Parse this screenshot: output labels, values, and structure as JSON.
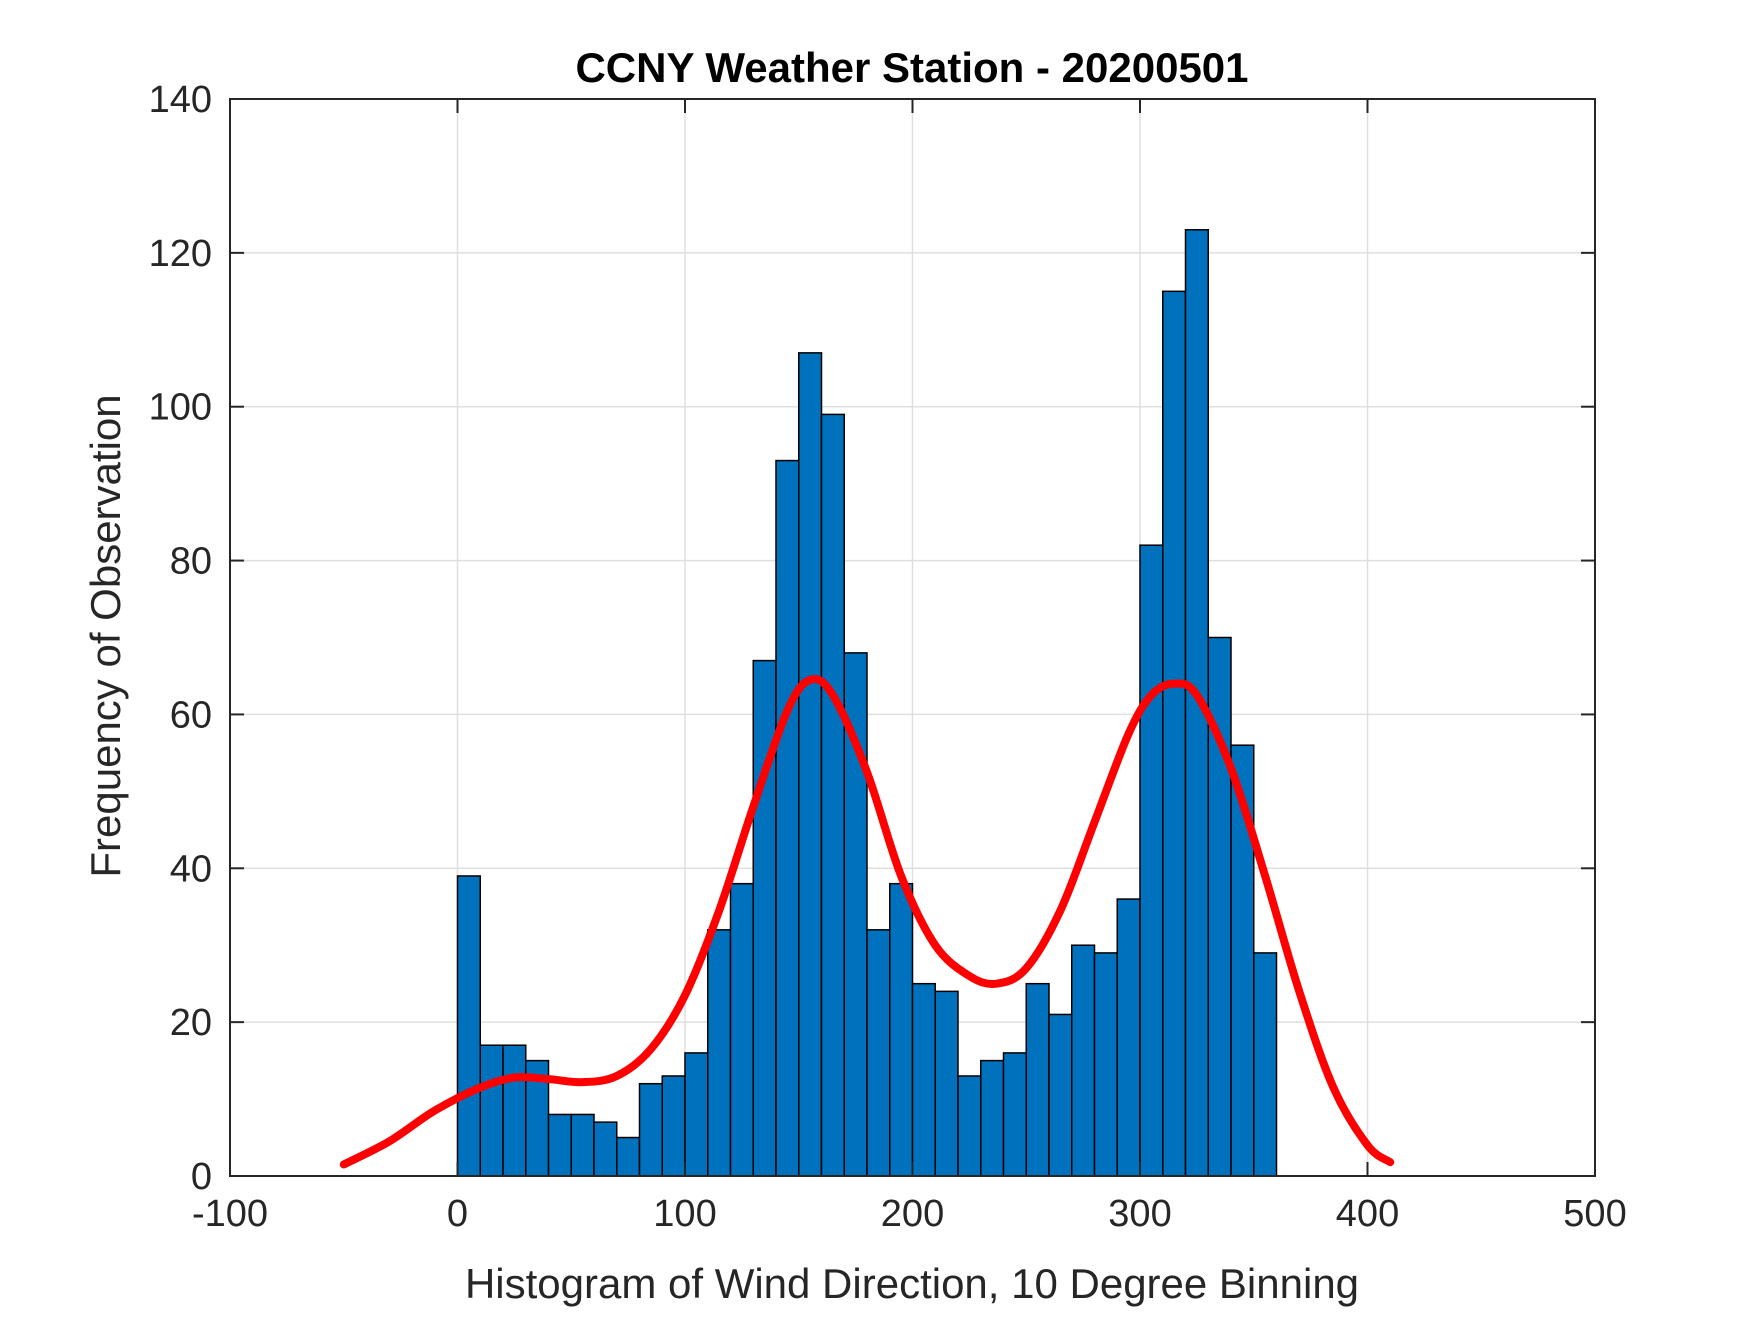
{
  "chart_data": {
    "type": "bar",
    "subtype": "histogram-with-fit",
    "title": "CCNY Weather Station - 20200501",
    "xlabel": "Histogram of Wind Direction, 10 Degree Binning",
    "ylabel": "Frequency of Observation",
    "xlim": [
      -100,
      500
    ],
    "ylim": [
      0,
      140
    ],
    "xticks": [
      -100,
      0,
      100,
      200,
      300,
      400,
      500
    ],
    "yticks": [
      0,
      20,
      40,
      60,
      80,
      100,
      120,
      140
    ],
    "grid": true,
    "bin_width": 10,
    "bin_edges_start": 0,
    "categories": [
      "0-10",
      "10-20",
      "20-30",
      "30-40",
      "40-50",
      "50-60",
      "60-70",
      "70-80",
      "80-90",
      "90-100",
      "100-110",
      "110-120",
      "120-130",
      "130-140",
      "140-150",
      "150-160",
      "160-170",
      "170-180",
      "180-190",
      "190-200",
      "200-210",
      "210-220",
      "220-230",
      "230-240",
      "240-250",
      "250-260",
      "260-270",
      "270-280",
      "280-290",
      "290-300",
      "300-310",
      "310-320",
      "320-330",
      "330-340",
      "340-350",
      "350-360"
    ],
    "values": [
      39,
      17,
      17,
      15,
      8,
      8,
      7,
      5,
      12,
      13,
      16,
      32,
      38,
      67,
      93,
      107,
      99,
      68,
      32,
      38,
      25,
      24,
      13,
      15,
      16,
      25,
      21,
      30,
      29,
      36,
      82,
      115,
      123,
      70,
      56,
      29
    ],
    "fit_curve": {
      "x": [
        -50,
        -30,
        -10,
        10,
        25,
        40,
        55,
        70,
        85,
        100,
        115,
        130,
        145,
        155,
        165,
        180,
        195,
        210,
        225,
        237,
        250,
        265,
        280,
        295,
        305,
        315,
        325,
        340,
        355,
        370,
        385,
        400,
        410
      ],
      "y": [
        1.5,
        4.5,
        8.5,
        11.5,
        12.8,
        12.6,
        12.2,
        13.0,
        16.5,
        23.5,
        34.5,
        48.0,
        60.5,
        64.5,
        62.5,
        52.5,
        39.0,
        30.0,
        26.0,
        25.0,
        27.0,
        34.5,
        46.0,
        57.5,
        62.5,
        64.0,
        62.5,
        53.0,
        39.0,
        24.0,
        11.5,
        4.0,
        1.8
      ]
    },
    "colors": {
      "bar_fill": "#0072BD",
      "bar_edge": "#000000",
      "fit_line": "#FF0000",
      "grid": "#DFDFDF",
      "axis": "#262626"
    }
  }
}
